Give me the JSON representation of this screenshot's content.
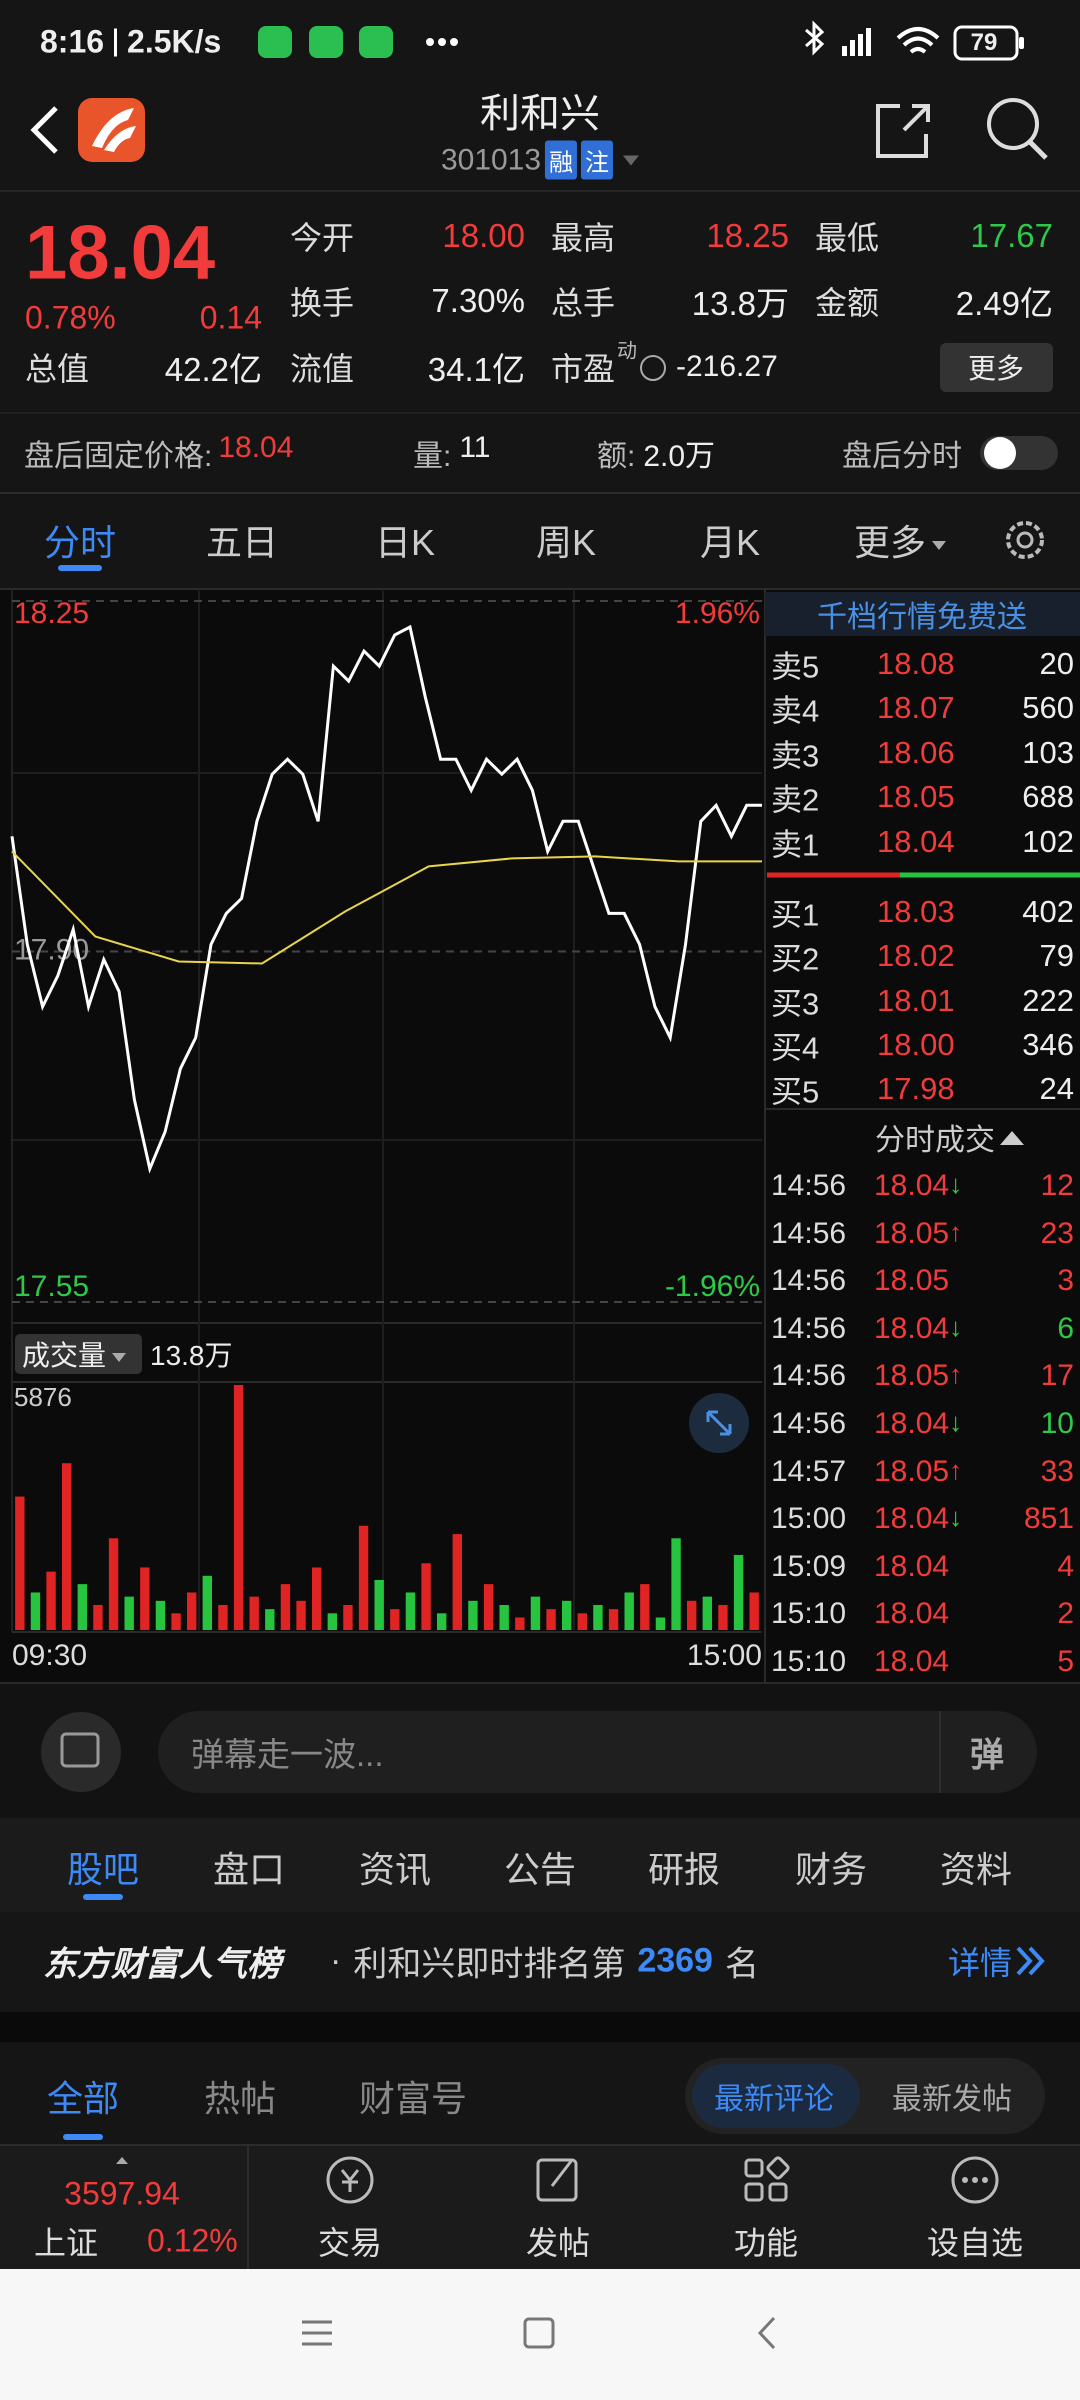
{
  "status_bar": {
    "time": "8:16",
    "speed": "2.5K/s",
    "battery": "79"
  },
  "header": {
    "title": "利和兴",
    "code": "301013",
    "badges": [
      "融",
      "注"
    ]
  },
  "quote": {
    "price": "18.04",
    "change_pct": "0.78%",
    "change": "0.14",
    "color": "#f23b3b",
    "stats": [
      {
        "label": "今开",
        "value": "18.00",
        "color": "#f23b3b"
      },
      {
        "label": "最高",
        "value": "18.25",
        "color": "#f23b3b"
      },
      {
        "label": "最低",
        "value": "17.67",
        "color": "#2fc94a"
      },
      {
        "label": "换手",
        "value": "7.30%"
      },
      {
        "label": "总手",
        "value": "13.8万"
      },
      {
        "label": "金额",
        "value": "2.49亿"
      },
      {
        "label": "总值",
        "value": "42.2亿"
      },
      {
        "label": "流值",
        "value": "34.1亿"
      },
      {
        "label": "市盈",
        "sup": "动",
        "value": "-216.27"
      }
    ],
    "more_button": "更多"
  },
  "after_hours": {
    "label": "盘后固定价格:",
    "price": "18.04",
    "volume_label": "量:",
    "volume": "11",
    "amount_label": "额:",
    "amount": "2.0万",
    "chart_label": "盘后分时"
  },
  "chart_tabs": [
    "分时",
    "五日",
    "日K",
    "周K",
    "月K",
    "更多"
  ],
  "chart_data": {
    "type": "line",
    "ylim": [
      17.55,
      18.25
    ],
    "yticks": [
      17.55,
      {
        "value": 17.9,
        "label": "17.90"
      },
      18.25
    ],
    "y2lim": [
      -1.96,
      1.96
    ],
    "y2ticks": [
      {
        "value": -1.96,
        "label": "-1.96%"
      },
      {
        "value": 1.96,
        "label": "1.96%"
      }
    ],
    "xticks": [
      "09:30",
      "15:00"
    ],
    "series": [
      {
        "color": "#ffffff",
        "values": [
          18.015,
          17.907,
          17.845,
          17.876,
          17.922,
          17.845,
          17.892,
          17.86,
          17.752,
          17.683,
          17.72,
          17.783,
          17.814,
          17.907,
          17.938,
          17.953,
          18.03,
          18.077,
          18.092,
          18.077,
          18.03,
          18.185,
          18.17,
          18.2,
          18.185,
          18.216,
          18.224,
          18.154,
          18.092,
          18.092,
          18.061,
          18.092,
          18.077,
          18.092,
          18.061,
          18.0,
          18.03,
          18.03,
          17.984,
          17.938,
          17.938,
          17.907,
          17.845,
          17.814,
          17.907,
          18.03,
          18.046,
          18.015,
          18.046,
          18.046
        ]
      },
      {
        "color": "#e8d44d",
        "values": [
          18.0,
          17.915,
          17.89,
          17.888,
          17.94,
          17.985,
          17.993,
          17.995,
          17.99,
          17.99
        ]
      }
    ],
    "volume_label": "成交量",
    "volume_total": "13.8万",
    "volume_ylim": [
      0,
      5876
    ],
    "volume_yticks": [
      5876
    ],
    "volume": [
      3200,
      900,
      1400,
      4000,
      1100,
      600,
      2200,
      800,
      1500,
      700,
      400,
      900,
      1300,
      600,
      5876,
      800,
      500,
      1100,
      700,
      1500,
      400,
      600,
      2500,
      1200,
      500,
      900,
      1600,
      400,
      2300,
      700,
      1100,
      600,
      300,
      800,
      500,
      700,
      400,
      600,
      500,
      900,
      1100,
      300,
      2200,
      700,
      800,
      600,
      1800,
      900
    ],
    "volume_colors": [
      "#e02424",
      "#27c53f",
      "#e02424",
      "#e02424",
      "#27c53f",
      "#e02424",
      "#e02424",
      "#27c53f",
      "#e02424",
      "#27c53f",
      "#e02424",
      "#e02424",
      "#27c53f",
      "#e02424",
      "#e02424",
      "#e02424",
      "#27c53f",
      "#e02424",
      "#e02424",
      "#e02424",
      "#27c53f",
      "#e02424",
      "#e02424",
      "#27c53f",
      "#e02424",
      "#27c53f",
      "#e02424",
      "#27c53f",
      "#e02424",
      "#27c53f",
      "#e02424",
      "#27c53f",
      "#e02424",
      "#27c53f",
      "#e02424",
      "#27c53f",
      "#e02424",
      "#27c53f",
      "#e02424",
      "#27c53f",
      "#e02424",
      "#27c53f",
      "#27c53f",
      "#e02424",
      "#27c53f",
      "#e02424",
      "#27c53f",
      "#e02424"
    ]
  },
  "order_book": {
    "banner": "千档行情免费送",
    "price_color": "#f23b3b",
    "asks": [
      {
        "label": "卖5",
        "price": "18.08",
        "volume": "20"
      },
      {
        "label": "卖4",
        "price": "18.07",
        "volume": "560"
      },
      {
        "label": "卖3",
        "price": "18.06",
        "volume": "103"
      },
      {
        "label": "卖2",
        "price": "18.05",
        "volume": "688"
      },
      {
        "label": "卖1",
        "price": "18.04",
        "volume": "102"
      }
    ],
    "bids": [
      {
        "label": "买1",
        "price": "18.03",
        "volume": "402"
      },
      {
        "label": "买2",
        "price": "18.02",
        "volume": "79"
      },
      {
        "label": "买3",
        "price": "18.01",
        "volume": "222"
      },
      {
        "label": "买4",
        "price": "18.00",
        "volume": "346"
      },
      {
        "label": "买5",
        "price": "17.98",
        "volume": "24"
      }
    ]
  },
  "trades": {
    "title": "分时成交",
    "price_color": "#f23b3b",
    "rows": [
      {
        "time": "14:56",
        "price": "18.04",
        "arrow": "↓",
        "arrow_color": "#2fc94a",
        "volume": "12",
        "volume_color": "#f23b3b"
      },
      {
        "time": "14:56",
        "price": "18.05",
        "arrow": "↑",
        "arrow_color": "#f23b3b",
        "volume": "23",
        "volume_color": "#f23b3b"
      },
      {
        "time": "14:56",
        "price": "18.05",
        "volume": "3",
        "volume_color": "#f23b3b"
      },
      {
        "time": "14:56",
        "price": "18.04",
        "arrow": "↓",
        "arrow_color": "#2fc94a",
        "volume": "6",
        "volume_color": "#2fc94a"
      },
      {
        "time": "14:56",
        "price": "18.05",
        "arrow": "↑",
        "arrow_color": "#f23b3b",
        "volume": "17",
        "volume_color": "#f23b3b"
      },
      {
        "time": "14:56",
        "price": "18.04",
        "arrow": "↓",
        "arrow_color": "#2fc94a",
        "volume": "10",
        "volume_color": "#2fc94a"
      },
      {
        "time": "14:57",
        "price": "18.05",
        "arrow": "↑",
        "arrow_color": "#f23b3b",
        "volume": "33",
        "volume_color": "#f23b3b"
      },
      {
        "time": "15:00",
        "price": "18.04",
        "arrow": "↓",
        "arrow_color": "#2fc94a",
        "volume": "851",
        "volume_color": "#f23b3b"
      },
      {
        "time": "15:09",
        "price": "18.04",
        "volume": "4",
        "volume_color": "#f23b3b"
      },
      {
        "time": "15:10",
        "price": "18.04",
        "volume": "2",
        "volume_color": "#f23b3b"
      },
      {
        "time": "15:10",
        "price": "18.04",
        "volume": "5",
        "volume_color": "#f23b3b"
      }
    ]
  },
  "comment_bar": {
    "placeholder": "弹幕走一波...",
    "button": "弹"
  },
  "section_tabs": [
    "股吧",
    "盘口",
    "资讯",
    "公告",
    "研报",
    "财务",
    "资料"
  ],
  "ranking": {
    "brand": "东方财富人气榜",
    "separator": "·",
    "text": "利和兴即时排名第",
    "rank": "2369",
    "unit": "名",
    "link": "详情"
  },
  "feed_tabs": [
    "全部",
    "热帖",
    "财富号"
  ],
  "sort_tabs": [
    "最新评论",
    "最新发帖"
  ],
  "bottom_bar": {
    "index_value": "3597.94",
    "index_name": "上证",
    "index_change": "0.12%",
    "color": "#f23b3b",
    "items": [
      "交易",
      "发帖",
      "功能",
      "设自选"
    ]
  }
}
